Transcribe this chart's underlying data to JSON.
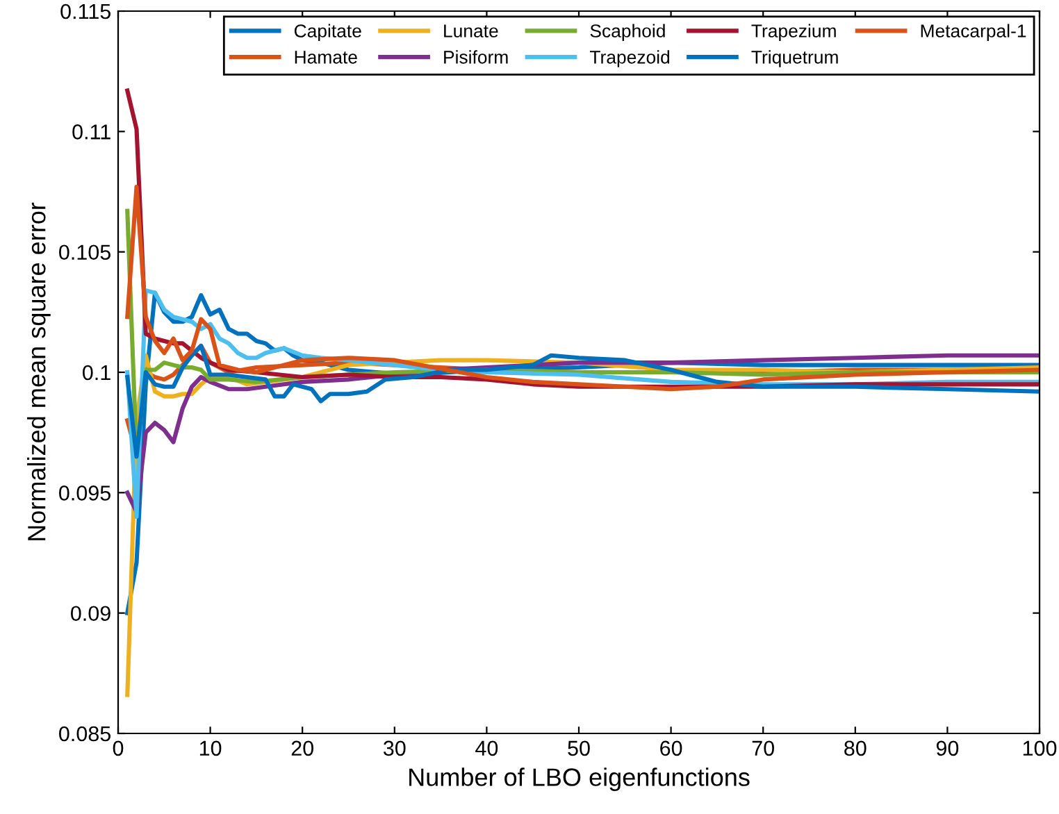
{
  "chart_data": {
    "type": "line",
    "xlabel": "Number of LBO eigenfunctions",
    "ylabel": "Normalized mean square error",
    "xlim": [
      0,
      100
    ],
    "xticks": [
      0,
      10,
      20,
      30,
      40,
      50,
      60,
      70,
      80,
      90,
      100
    ],
    "ylim": [
      0.085,
      0.115
    ],
    "yticks": [
      0.085,
      0.09,
      0.095,
      0.1,
      0.105,
      0.11,
      0.115
    ],
    "grid": false,
    "legend": "top right",
    "marker": "none",
    "line_style": "solid",
    "series": [
      {
        "name": "Capitate",
        "color": "#0072bd",
        "x": [
          1,
          2,
          3,
          4,
          5,
          6,
          7,
          8,
          9,
          10,
          11,
          12,
          13,
          14,
          15,
          16,
          17,
          18,
          19,
          20,
          22,
          25,
          28,
          32,
          40,
          50,
          60,
          70,
          80,
          90,
          100
        ],
        "values": [
          0.09,
          0.0921,
          0.0995,
          0.1033,
          0.1025,
          0.1021,
          0.1021,
          0.1023,
          0.1032,
          0.1024,
          0.1026,
          0.1018,
          0.1016,
          0.1016,
          0.1013,
          0.1012,
          0.1009,
          0.101,
          0.1007,
          0.1005,
          0.1004,
          0.1001,
          0.1,
          0.0999,
          0.1001,
          0.1002,
          0.1004,
          0.1003,
          0.1003,
          0.1003,
          0.1003
        ]
      },
      {
        "name": "Hamate",
        "color": "#d95319",
        "x": [
          1,
          2,
          3,
          4,
          5,
          6,
          7,
          8,
          9,
          10,
          12,
          15,
          20,
          25,
          30,
          40,
          50,
          60,
          70,
          80,
          90,
          100
        ],
        "values": [
          0.098,
          0.0966,
          0.1,
          0.0998,
          0.0997,
          0.0999,
          0.1003,
          0.1007,
          0.1011,
          0.1004,
          0.1,
          0.1002,
          0.1003,
          0.1004,
          0.1003,
          0.1001,
          0.1,
          0.1,
          0.1,
          0.1001,
          0.1001,
          0.1001
        ]
      },
      {
        "name": "Lunate",
        "color": "#edb120",
        "x": [
          1,
          2,
          3,
          4,
          5,
          6,
          7,
          8,
          9,
          10,
          12,
          14,
          16,
          18,
          20,
          25,
          30,
          35,
          40,
          50,
          60,
          70,
          80,
          90,
          100
        ],
        "values": [
          0.0866,
          0.098,
          0.1007,
          0.0992,
          0.099,
          0.099,
          0.0991,
          0.0991,
          0.0995,
          0.0998,
          0.0998,
          0.0995,
          0.0996,
          0.0997,
          0.0998,
          0.1003,
          0.1004,
          0.1005,
          0.1005,
          0.1004,
          0.1001,
          0.1001,
          0.1,
          0.1001,
          0.1002
        ]
      },
      {
        "name": "Pisiform",
        "color": "#7e2f8e",
        "x": [
          1,
          2,
          3,
          4,
          5,
          6,
          7,
          8,
          9,
          10,
          12,
          14,
          16,
          18,
          20,
          25,
          30,
          35,
          40,
          50,
          60,
          70,
          80,
          90,
          100
        ],
        "values": [
          0.095,
          0.0942,
          0.0975,
          0.0979,
          0.0976,
          0.0971,
          0.0985,
          0.0994,
          0.0998,
          0.0996,
          0.0993,
          0.0993,
          0.0994,
          0.0995,
          0.0996,
          0.0997,
          0.0999,
          0.1001,
          0.1002,
          0.1004,
          0.1004,
          0.1005,
          0.1006,
          0.1007,
          0.1007
        ]
      },
      {
        "name": "Scaphoid",
        "color": "#77ac30",
        "x": [
          1,
          2,
          3,
          4,
          5,
          6,
          7,
          8,
          9,
          10,
          12,
          15,
          20,
          25,
          30,
          40,
          50,
          60,
          70,
          80,
          90,
          100
        ],
        "values": [
          0.1067,
          0.0965,
          0.1001,
          0.1001,
          0.1004,
          0.1003,
          0.1002,
          0.1002,
          0.1001,
          0.0997,
          0.0997,
          0.0996,
          0.0998,
          0.0999,
          0.1,
          0.1001,
          0.1,
          0.1,
          0.0999,
          0.1,
          0.1,
          0.1
        ]
      },
      {
        "name": "Trapezoid",
        "color": "#4dbeee",
        "x": [
          1,
          2,
          3,
          4,
          5,
          6,
          7,
          8,
          9,
          10,
          11,
          12,
          13,
          14,
          15,
          16,
          18,
          20,
          22,
          25,
          30,
          35,
          40,
          50,
          60,
          70,
          80,
          90,
          100
        ],
        "values": [
          0.1,
          0.094,
          0.1034,
          0.1033,
          0.1026,
          0.1023,
          0.1022,
          0.1021,
          0.1018,
          0.102,
          0.1014,
          0.1012,
          0.1008,
          0.1006,
          0.1006,
          0.1008,
          0.101,
          0.1007,
          0.1006,
          0.1005,
          0.1003,
          0.1001,
          0.1,
          0.0999,
          0.0996,
          0.0995,
          0.0995,
          0.0996,
          0.0996
        ]
      },
      {
        "name": "Trapezium",
        "color": "#a2142f",
        "x": [
          1,
          2,
          3,
          4,
          5,
          6,
          7,
          8,
          9,
          10,
          12,
          15,
          20,
          25,
          30,
          35,
          40,
          45,
          50,
          60,
          70,
          80,
          90,
          100
        ],
        "values": [
          0.1117,
          0.1101,
          0.1016,
          0.1014,
          0.1013,
          0.1012,
          0.1012,
          0.1009,
          0.1006,
          0.1004,
          0.1001,
          0.1,
          0.0998,
          0.0999,
          0.0998,
          0.0998,
          0.0997,
          0.0995,
          0.0994,
          0.0994,
          0.0994,
          0.0995,
          0.0995,
          0.0995
        ]
      },
      {
        "name": "Triquetrum",
        "color": "#0072bd",
        "x": [
          1,
          2,
          3,
          4,
          5,
          6,
          7,
          8,
          9,
          10,
          12,
          14,
          16,
          17,
          18,
          19,
          21,
          22,
          23,
          25,
          27,
          29,
          32,
          36,
          40,
          45,
          47,
          50,
          55,
          60,
          65,
          70,
          80,
          90,
          100
        ],
        "values": [
          0.0998,
          0.0965,
          0.1,
          0.0995,
          0.0994,
          0.0994,
          0.1002,
          0.1007,
          0.1011,
          0.0999,
          0.0999,
          0.0998,
          0.0997,
          0.099,
          0.099,
          0.0995,
          0.0993,
          0.0988,
          0.0991,
          0.0991,
          0.0992,
          0.0997,
          0.0998,
          0.1001,
          0.1001,
          0.1003,
          0.1007,
          0.1006,
          0.1005,
          0.1001,
          0.0996,
          0.0994,
          0.0994,
          0.0993,
          0.0992
        ]
      },
      {
        "name": "Metacarpal-1",
        "color": "#d95319",
        "x": [
          1,
          2,
          3,
          4,
          5,
          6,
          7,
          8,
          9,
          10,
          11,
          13,
          15,
          20,
          25,
          30,
          40,
          45,
          55,
          60,
          65,
          70,
          80,
          90,
          100
        ],
        "values": [
          0.1023,
          0.1077,
          0.1023,
          0.1013,
          0.1008,
          0.1014,
          0.1005,
          0.1009,
          0.1022,
          0.1018,
          0.1003,
          0.1001,
          0.1,
          0.1005,
          0.1006,
          0.1005,
          0.0998,
          0.0996,
          0.0994,
          0.0993,
          0.0994,
          0.0997,
          0.0999,
          0.1,
          0.1001
        ]
      }
    ]
  }
}
